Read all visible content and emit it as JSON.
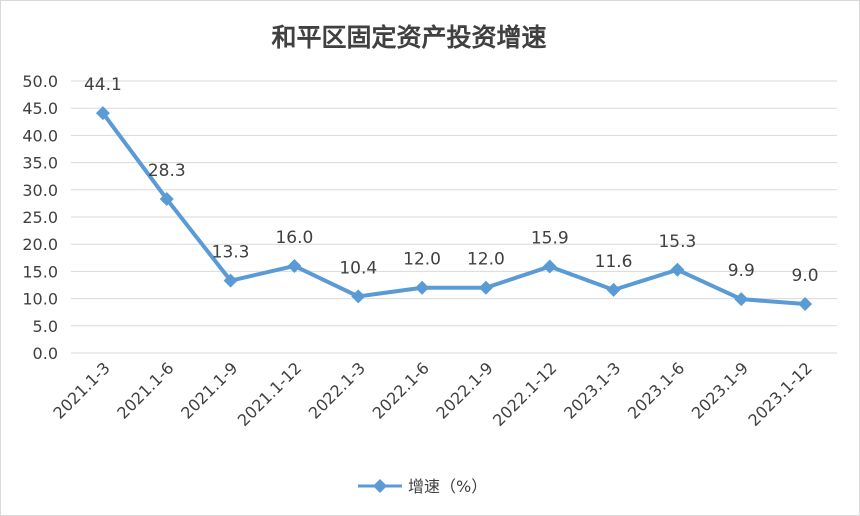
{
  "chart_data": {
    "type": "line",
    "title": "和平区固定资产投资增速",
    "categories": [
      "2021.1-3",
      "2021.1-6",
      "2021.1-9",
      "2021.1-12",
      "2022.1-3",
      "2022.1-6",
      "2022.1-9",
      "2022.1-12",
      "2023.1-3",
      "2023.1-6",
      "2023.1-9",
      "2023.1-12"
    ],
    "series": [
      {
        "name": "增速（%）",
        "values": [
          44.1,
          28.3,
          13.3,
          16.0,
          10.4,
          12.0,
          12.0,
          15.9,
          11.6,
          15.3,
          9.9,
          9.0
        ],
        "labels": [
          "44.1",
          "28.3",
          "13.3",
          "16.0",
          "10.4",
          "12.0",
          "12.0",
          "15.9",
          "11.6",
          "15.3",
          "9.9",
          "9.0"
        ],
        "color": "#5b9bd5",
        "marker": "diamond"
      }
    ],
    "ylim": [
      0,
      50
    ],
    "yticks": [
      "0.0",
      "5.0",
      "10.0",
      "15.0",
      "20.0",
      "25.0",
      "30.0",
      "35.0",
      "40.0",
      "45.0",
      "50.0"
    ],
    "grid": true,
    "legend": "bottom"
  }
}
